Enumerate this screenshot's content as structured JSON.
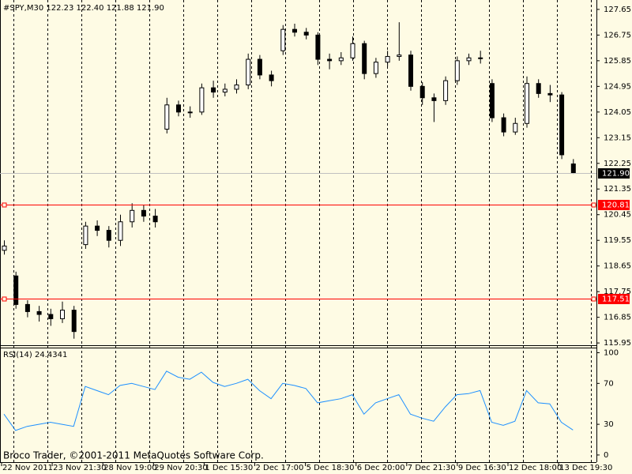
{
  "chart_data": [
    {
      "type": "candlestick",
      "title": "#SPY,M30  122.23 122.40 121.88 121.90",
      "footer": "Broco Trader, ©2001-2011 MetaQuotes Software Corp.",
      "x_labels": [
        "22 Nov 2011",
        "23 Nov 21:30",
        "28 Nov 19:00",
        "29 Nov 20:30",
        "1 Dec 15:30",
        "2 Dec 17:00",
        "5 Dec 18:30",
        "6 Dec 20:00",
        "7 Dec 21:30",
        "9 Dec 16:30",
        "12 Dec 18:00",
        "13 Dec 19:30"
      ],
      "open": [
        119.2,
        118.3,
        117.3,
        117.05,
        116.95,
        116.8,
        117.1,
        119.4,
        120.05,
        119.9,
        119.55,
        120.2,
        120.6,
        120.4,
        123.45,
        124.3,
        124.05,
        124.05,
        124.9,
        124.75,
        124.85,
        125.0,
        125.9,
        125.35,
        126.2,
        126.95,
        126.85,
        126.75,
        125.9,
        125.85,
        125.95,
        126.45,
        125.4,
        125.8,
        126.0,
        126.05,
        124.95,
        124.55,
        124.45,
        125.15,
        125.85,
        125.95,
        125.05,
        123.85,
        123.35,
        123.65,
        125.05,
        124.7,
        124.65,
        122.23
      ],
      "high": [
        119.55,
        118.45,
        117.45,
        117.25,
        117.15,
        117.4,
        117.25,
        120.2,
        120.25,
        120.05,
        120.45,
        120.85,
        120.8,
        120.65,
        124.55,
        124.45,
        124.25,
        125.05,
        125.15,
        125.05,
        125.2,
        126.1,
        126.05,
        125.5,
        127.1,
        127.15,
        127.0,
        126.85,
        126.1,
        126.15,
        126.7,
        126.55,
        125.95,
        126.2,
        127.2,
        126.2,
        125.1,
        124.7,
        125.3,
        126.0,
        126.1,
        126.2,
        125.2,
        124.0,
        123.85,
        125.3,
        125.2,
        125.0,
        124.75,
        122.4
      ],
      "low": [
        119.05,
        117.15,
        116.85,
        116.7,
        116.55,
        116.65,
        116.1,
        119.25,
        119.7,
        119.3,
        119.35,
        120.0,
        120.2,
        120.0,
        123.3,
        123.9,
        123.85,
        123.95,
        124.55,
        124.6,
        124.7,
        124.85,
        125.2,
        124.95,
        126.05,
        126.7,
        126.6,
        125.7,
        125.55,
        125.7,
        125.85,
        125.2,
        125.25,
        125.65,
        125.85,
        124.8,
        124.3,
        123.7,
        124.3,
        125.0,
        125.7,
        125.75,
        123.7,
        123.2,
        123.25,
        123.5,
        124.55,
        124.4,
        122.4,
        121.88
      ],
      "close": [
        119.35,
        117.3,
        117.05,
        116.95,
        116.8,
        117.1,
        116.35,
        120.05,
        119.9,
        119.55,
        120.2,
        120.6,
        120.4,
        120.2,
        124.3,
        124.05,
        124.05,
        124.9,
        124.75,
        124.85,
        125.0,
        125.9,
        125.35,
        125.15,
        126.95,
        126.85,
        126.75,
        125.9,
        125.85,
        125.95,
        126.45,
        125.4,
        125.8,
        126.0,
        126.05,
        124.95,
        124.55,
        124.45,
        125.15,
        125.85,
        125.95,
        125.95,
        123.85,
        123.35,
        123.65,
        125.05,
        124.7,
        124.65,
        122.55,
        121.9
      ],
      "ylim": [
        115.87,
        127.98
      ],
      "yticks": [
        127.65,
        126.75,
        125.85,
        124.95,
        124.05,
        123.15,
        122.25,
        121.35,
        120.45,
        119.55,
        118.65,
        117.75,
        116.85,
        115.95
      ],
      "levels": [
        {
          "value": 121.9,
          "label": "121.90",
          "color": "#c0c0c0",
          "box": "#000000"
        },
        {
          "value": 120.81,
          "color": "#ff0000",
          "box": "#ff0000"
        },
        {
          "value": 117.51,
          "color": "#ff0000",
          "box": "#ff0000"
        }
      ]
    },
    {
      "type": "line",
      "title": "RSI(14) 24.4341",
      "color": "#1e90ff",
      "values": [
        40,
        24,
        28,
        30,
        32,
        30,
        28,
        67,
        63,
        59,
        68,
        70,
        67,
        64,
        82,
        76,
        74,
        81,
        71,
        67,
        70,
        74,
        63,
        55,
        70,
        68,
        65,
        51,
        53,
        55,
        59,
        40,
        51,
        55,
        59,
        40,
        36,
        33,
        47,
        59,
        60,
        63,
        32,
        29,
        33,
        63,
        51,
        50,
        32,
        24.4341
      ],
      "ylim": [
        -7,
        105
      ],
      "yticks": [
        100,
        70,
        30,
        0
      ]
    }
  ]
}
